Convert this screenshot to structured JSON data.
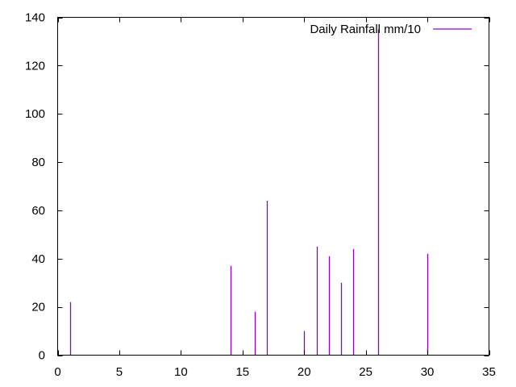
{
  "chart_data": {
    "type": "bar",
    "style": "impulses",
    "title": "",
    "xlabel": "",
    "ylabel": "",
    "xlim": [
      0,
      35
    ],
    "ylim": [
      0,
      140
    ],
    "xticks": [
      0,
      5,
      10,
      15,
      20,
      25,
      30,
      35
    ],
    "yticks": [
      0,
      20,
      40,
      60,
      80,
      100,
      120,
      140
    ],
    "grid": false,
    "legend_position": "top-right",
    "series": [
      {
        "name": "Daily Rainfall mm/10",
        "color": "#9400d3",
        "x": [
          1,
          14,
          16,
          17,
          20,
          21,
          22,
          23,
          24,
          26,
          30
        ],
        "values": [
          22,
          37,
          18,
          64,
          10,
          45,
          41,
          30,
          44,
          135,
          42
        ]
      }
    ]
  }
}
